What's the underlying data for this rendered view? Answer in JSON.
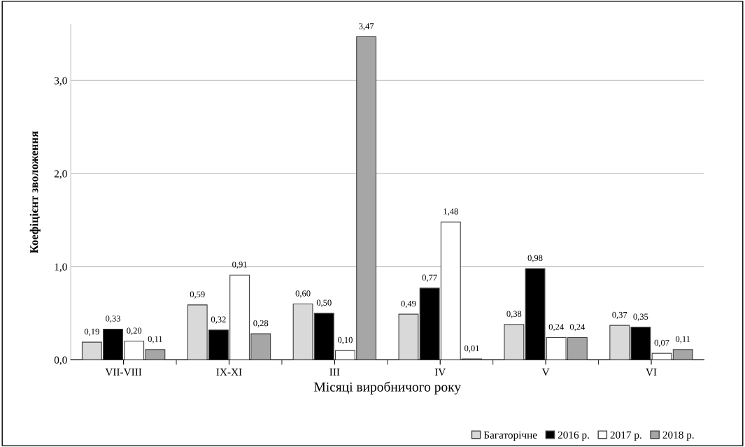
{
  "chart_data": {
    "type": "bar",
    "xlabel": "Місяці виробничого року",
    "ylabel": "Коефіцієнт зволоження",
    "categories": [
      "VII-VIII",
      "IX-XI",
      "III",
      "IV",
      "V",
      "VI"
    ],
    "series": [
      {
        "name": "Багаторічне",
        "color": "#d9d9d9",
        "values": [
          0.19,
          0.59,
          0.6,
          0.49,
          0.38,
          0.37
        ],
        "value_labels": [
          "0,19",
          "0,59",
          "0,60",
          "0,49",
          "0,38",
          "0,37"
        ]
      },
      {
        "name": "2016 р.",
        "color": "#000000",
        "values": [
          0.33,
          0.32,
          0.5,
          0.77,
          0.98,
          0.35
        ],
        "value_labels": [
          "0,33",
          "0,32",
          "0,50",
          "0,77",
          "0,98",
          "0,35"
        ]
      },
      {
        "name": "2017 р.",
        "color": "#ffffff",
        "values": [
          0.2,
          0.91,
          0.1,
          1.48,
          0.24,
          0.07
        ],
        "value_labels": [
          "0,20",
          "0,91",
          "0,10",
          "1,48",
          "0,24",
          "0,07"
        ]
      },
      {
        "name": "2018 р.",
        "color": "#a6a6a6",
        "values": [
          0.11,
          0.28,
          3.47,
          0.01,
          0.24,
          0.11
        ],
        "value_labels": [
          "0,11",
          "0,28",
          "3,47",
          "0,01",
          "0,24",
          "0,11"
        ]
      }
    ],
    "ylim": [
      0,
      3.6
    ],
    "yticks": [
      {
        "value": 0,
        "label": "0,0"
      },
      {
        "value": 1,
        "label": "1,0"
      },
      {
        "value": 2,
        "label": "2,0"
      },
      {
        "value": 3,
        "label": "3,0"
      }
    ],
    "grid": "y",
    "legend": "bottom right"
  }
}
